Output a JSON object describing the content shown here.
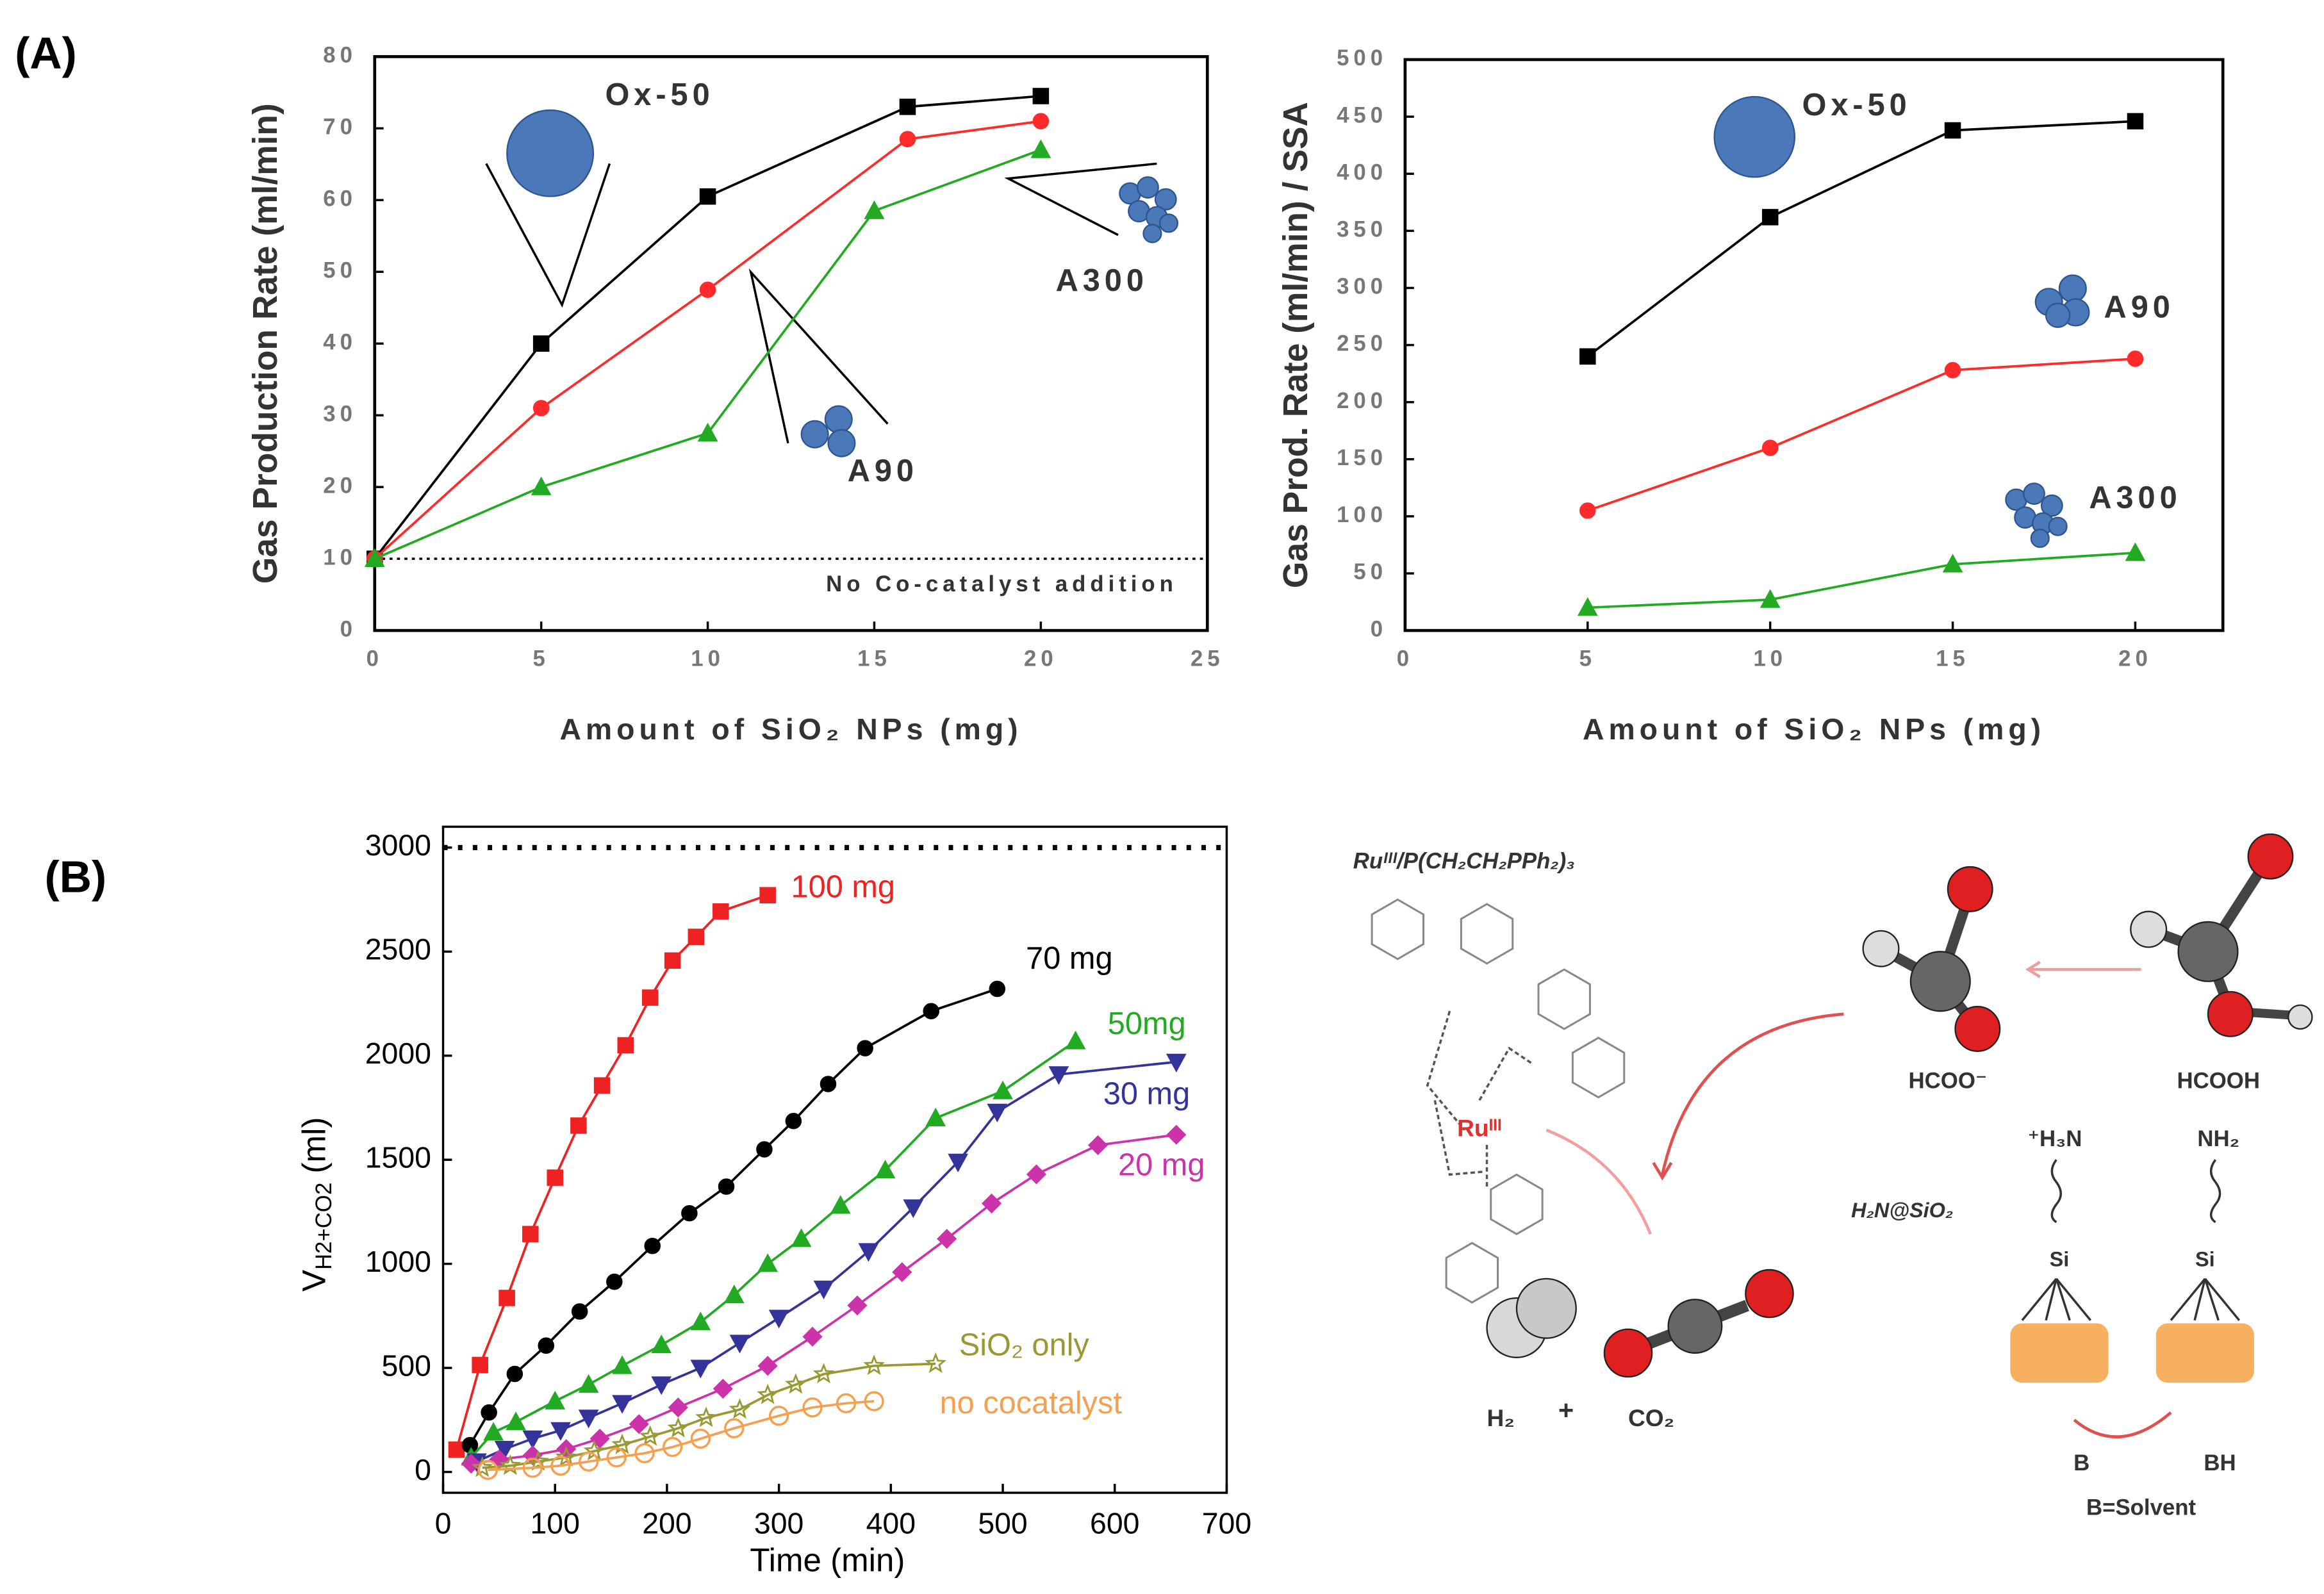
{
  "panels": [
    "(A)",
    "(B)"
  ],
  "chart_data": [
    {
      "type": "line",
      "xlabel": "Amount of SiO₂ NPs (mg)",
      "ylabel": "Gas Production Rate (ml/min)",
      "xlim": [
        0,
        25
      ],
      "xticks": [
        0,
        5,
        10,
        15,
        20,
        25
      ],
      "ylim": [
        0,
        80
      ],
      "yticks": [
        0,
        10,
        20,
        30,
        40,
        50,
        60,
        70,
        80
      ],
      "reference": {
        "value": 10,
        "label": "No Co-catalyst addition"
      },
      "series": [
        {
          "name": "Ox-50",
          "color": "#000000",
          "marker": "square",
          "x": [
            0,
            5,
            10,
            16,
            20
          ],
          "values": [
            10,
            40,
            60.5,
            73,
            74.5
          ]
        },
        {
          "name": "A90",
          "color": "#ff2a2a",
          "marker": "circle",
          "x": [
            0,
            5,
            10,
            16,
            20
          ],
          "values": [
            10,
            31,
            47.5,
            68.5,
            71
          ]
        },
        {
          "name": "A300",
          "color": "#22aa22",
          "marker": "triangle",
          "x": [
            0,
            5,
            10,
            15,
            20
          ],
          "values": [
            10,
            20,
            27.5,
            58.5,
            67
          ]
        }
      ]
    },
    {
      "type": "line",
      "xlabel": "Amount of SiO₂ NPs (mg)",
      "ylabel": "Gas Prod. Rate (ml/min) / SSA",
      "xlim": [
        0,
        22.4
      ],
      "xticks": [
        0,
        5,
        10,
        15,
        20
      ],
      "ylim": [
        0,
        500
      ],
      "yticks": [
        0,
        50,
        100,
        150,
        200,
        250,
        300,
        350,
        400,
        450,
        500
      ],
      "series": [
        {
          "name": "Ox-50",
          "color": "#000000",
          "marker": "square",
          "x": [
            5,
            10,
            15,
            20
          ],
          "values": [
            240,
            362,
            438,
            446
          ]
        },
        {
          "name": "A90",
          "color": "#ff2a2a",
          "marker": "circle",
          "x": [
            5,
            10,
            15,
            20
          ],
          "values": [
            105,
            160,
            228,
            238
          ]
        },
        {
          "name": "A300",
          "color": "#22aa22",
          "marker": "triangle",
          "x": [
            5,
            10,
            15,
            20
          ],
          "values": [
            20,
            27,
            58,
            68
          ]
        }
      ]
    },
    {
      "type": "line",
      "xlabel": "Time (min)",
      "ylabel": [
        "V",
        "H2+CO2",
        " (ml)"
      ],
      "xlim": [
        0,
        700
      ],
      "xticks": [
        0,
        100,
        200,
        300,
        400,
        500,
        600,
        700
      ],
      "ylim": [
        -100,
        3100
      ],
      "yticks": [
        0,
        500,
        1000,
        1500,
        2000,
        2500,
        3000
      ],
      "reference": {
        "value": 3000
      },
      "series": [
        {
          "name": "100 mg",
          "color": "#ee2222",
          "marker": "square",
          "x": [
            12,
            33,
            57,
            78,
            100,
            121,
            142,
            163,
            185,
            205,
            226,
            248,
            290
          ],
          "values": [
            107,
            514,
            836,
            1143,
            1414,
            1664,
            1857,
            2050,
            2279,
            2457,
            2571,
            2693,
            2771
          ]
        },
        {
          "name": "70 mg",
          "color": "#000000",
          "marker": "circle",
          "x": [
            24,
            41,
            64,
            92,
            122,
            153,
            187,
            220,
            253,
            287,
            313,
            344,
            377,
            436,
            495
          ],
          "values": [
            129,
            286,
            471,
            607,
            771,
            914,
            1086,
            1243,
            1371,
            1550,
            1686,
            1864,
            2036,
            2214,
            2321
          ]
        },
        {
          "name": "50mg",
          "color": "#22aa22",
          "marker": "triangle",
          "x": [
            25,
            45,
            65,
            100,
            130,
            160,
            195,
            230,
            260,
            290,
            320,
            355,
            395,
            440,
            500,
            565
          ],
          "values": [
            70,
            190,
            240,
            340,
            420,
            510,
            610,
            720,
            850,
            1000,
            1120,
            1280,
            1450,
            1700,
            1830,
            2070
          ]
        },
        {
          "name": "30 mg",
          "color": "#333399",
          "marker": "triangle-down",
          "x": [
            30,
            55,
            80,
            105,
            130,
            160,
            195,
            230,
            265,
            300,
            340,
            380,
            420,
            460,
            495,
            550,
            655
          ],
          "values": [
            50,
            110,
            160,
            200,
            260,
            330,
            420,
            500,
            620,
            740,
            880,
            1060,
            1270,
            1490,
            1730,
            1910,
            1970
          ]
        },
        {
          "name": "20 mg",
          "color": "#cc33aa",
          "marker": "diamond",
          "x": [
            25,
            50,
            80,
            110,
            140,
            175,
            210,
            250,
            290,
            330,
            370,
            410,
            450,
            490,
            530,
            585,
            655
          ],
          "values": [
            40,
            60,
            80,
            110,
            160,
            230,
            310,
            400,
            510,
            650,
            800,
            960,
            1120,
            1290,
            1430,
            1570,
            1620
          ]
        },
        {
          "name": "SiO₂ only",
          "color": "#999933",
          "marker": "star",
          "x": [
            35,
            60,
            85,
            110,
            135,
            160,
            185,
            210,
            235,
            265,
            290,
            315,
            340,
            385,
            440
          ],
          "values": [
            20,
            30,
            50,
            70,
            100,
            130,
            170,
            210,
            260,
            300,
            370,
            420,
            470,
            510,
            520
          ]
        },
        {
          "name": "no cocatalyst",
          "color": "#f5a050",
          "marker": "open-circle",
          "x": [
            40,
            80,
            105,
            130,
            155,
            180,
            205,
            230,
            260,
            300,
            330,
            360,
            385
          ],
          "values": [
            10,
            20,
            30,
            50,
            70,
            90,
            120,
            160,
            210,
            270,
            310,
            330,
            340
          ]
        }
      ]
    }
  ],
  "scheme": {
    "catalyst": "Ruᴵᴵᴵ/P(CH₂CH₂PPh₂)₃",
    "metal": "Ruᴵᴵᴵ",
    "formate": "HCOO⁻",
    "acid": "HCOOH",
    "ammonium": "⁺H₃N",
    "amine": "NH₂",
    "silicon": "Si",
    "support": "H₂N@SiO₂",
    "hydrogen": "H₂",
    "plus": "+",
    "co2": "CO₂",
    "base": "B",
    "acid_base": "BH",
    "base_note": "B=Solvent"
  }
}
